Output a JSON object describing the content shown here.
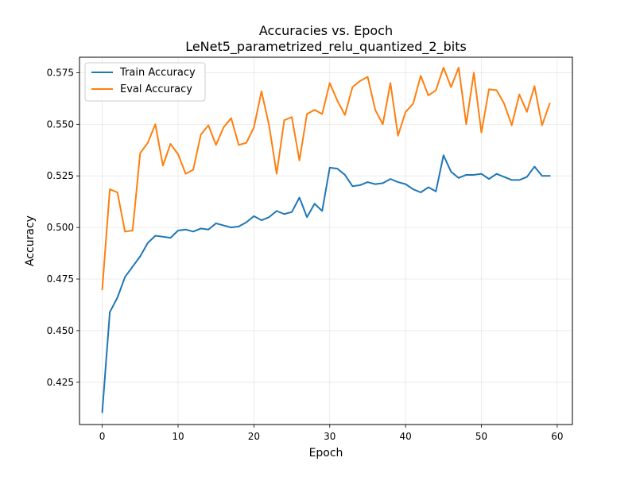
{
  "chart_data": {
    "type": "line",
    "title": "Accuracies vs. Epoch",
    "subtitle": "LeNet5_parametrized_relu_quantized_2_bits",
    "xlabel": "Epoch",
    "ylabel": "Accuracy",
    "xlim": [
      -3,
      62
    ],
    "ylim": [
      0.4045,
      0.5825
    ],
    "x_ticks": [
      0,
      10,
      20,
      30,
      40,
      50,
      60
    ],
    "y_ticks": [
      0.425,
      0.45,
      0.475,
      0.5,
      0.525,
      0.55,
      0.575
    ],
    "grid": true,
    "legend": "top-left",
    "x": [
      0,
      1,
      2,
      3,
      4,
      5,
      6,
      7,
      8,
      9,
      10,
      11,
      12,
      13,
      14,
      15,
      16,
      17,
      18,
      19,
      20,
      21,
      22,
      23,
      24,
      25,
      26,
      27,
      28,
      29,
      30,
      31,
      32,
      33,
      34,
      35,
      36,
      37,
      38,
      39,
      40,
      41,
      42,
      43,
      44,
      45,
      46,
      47,
      48,
      49,
      50,
      51,
      52,
      53,
      54,
      55,
      56,
      57,
      58,
      59
    ],
    "series": [
      {
        "name": "Train Accuracy",
        "color": "#1f77b4",
        "values": [
          0.4105,
          0.459,
          0.466,
          0.476,
          0.481,
          0.486,
          0.4925,
          0.496,
          0.4955,
          0.495,
          0.4985,
          0.499,
          0.498,
          0.4995,
          0.499,
          0.502,
          0.501,
          0.5,
          0.5005,
          0.5025,
          0.5055,
          0.5035,
          0.505,
          0.508,
          0.5065,
          0.5075,
          0.5145,
          0.505,
          0.5115,
          0.508,
          0.529,
          0.5285,
          0.5255,
          0.52,
          0.5205,
          0.522,
          0.521,
          0.5215,
          0.5235,
          0.522,
          0.521,
          0.5185,
          0.517,
          0.5195,
          0.5175,
          0.535,
          0.527,
          0.524,
          0.5255,
          0.5255,
          0.526,
          0.5235,
          0.526,
          0.5245,
          0.523,
          0.523,
          0.5245,
          0.5295,
          0.525,
          0.525
        ]
      },
      {
        "name": "Eval Accuracy",
        "color": "#ff7f0e",
        "values": [
          0.47,
          0.5185,
          0.517,
          0.498,
          0.4985,
          0.536,
          0.541,
          0.55,
          0.53,
          0.5405,
          0.5355,
          0.526,
          0.528,
          0.545,
          0.5495,
          0.54,
          0.5485,
          0.553,
          0.54,
          0.541,
          0.5485,
          0.566,
          0.5495,
          0.526,
          0.552,
          0.5535,
          0.5325,
          0.555,
          0.557,
          0.555,
          0.57,
          0.5615,
          0.5545,
          0.568,
          0.571,
          0.573,
          0.557,
          0.55,
          0.57,
          0.5445,
          0.556,
          0.56,
          0.5735,
          0.564,
          0.5665,
          0.5775,
          0.568,
          0.5775,
          0.55,
          0.575,
          0.546,
          0.567,
          0.5665,
          0.56,
          0.5495,
          0.5645,
          0.556,
          0.5685,
          0.5495,
          0.56
        ]
      }
    ]
  }
}
